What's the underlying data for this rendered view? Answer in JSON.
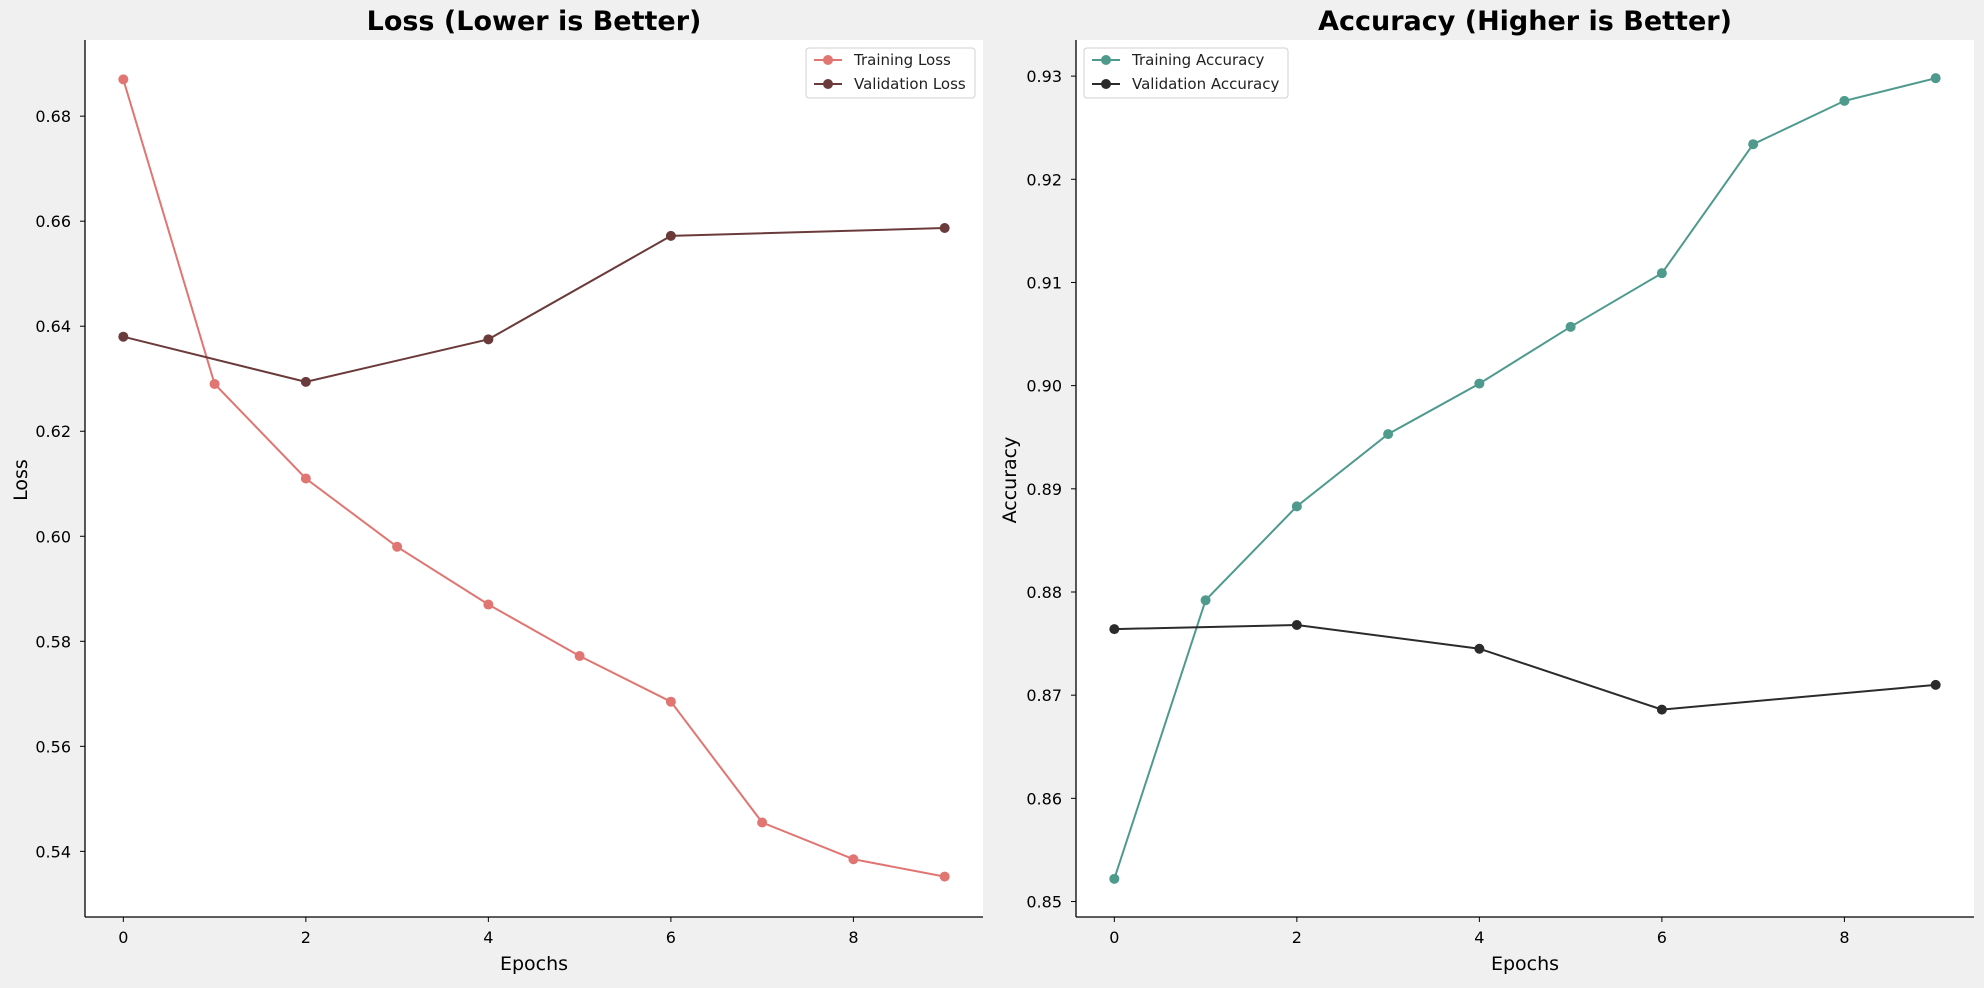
{
  "figure": {
    "background": "#f0f0f0",
    "plot_background": "#ffffff"
  },
  "chart_data": [
    {
      "type": "line",
      "title": "Loss (Lower is Better)",
      "xlabel": "Epochs",
      "ylabel": "Loss",
      "x": [
        0,
        1,
        2,
        3,
        4,
        5,
        6,
        7,
        8,
        9
      ],
      "xlim": [
        -0.42,
        9.42
      ],
      "ylim": [
        0.5275,
        0.6945
      ],
      "xticks": [
        0,
        2,
        4,
        6,
        8
      ],
      "yticks": [
        0.54,
        0.56,
        0.58,
        0.6,
        0.62,
        0.64,
        0.66,
        0.68
      ],
      "ytick_labels": [
        "0.54",
        "0.56",
        "0.58",
        "0.60",
        "0.62",
        "0.64",
        "0.66",
        "0.68"
      ],
      "grid": false,
      "legend": "top-right",
      "series": [
        {
          "name": "Training Loss",
          "color": "#e07572",
          "marker": "circle",
          "x": [
            0,
            1,
            2,
            3,
            4,
            5,
            6,
            7,
            8,
            9
          ],
          "values": [
            0.687,
            0.629,
            0.611,
            0.598,
            0.587,
            0.5772,
            0.5685,
            0.5455,
            0.5385,
            0.5352
          ]
        },
        {
          "name": "Validation Loss",
          "color": "#6b3b3b",
          "marker": "circle",
          "x": [
            0,
            2,
            4,
            6,
            9
          ],
          "values": [
            0.638,
            0.6294,
            0.6375,
            0.6572,
            0.6587
          ]
        }
      ]
    },
    {
      "type": "line",
      "title": "Accuracy (Higher is Better)",
      "xlabel": "Epochs",
      "ylabel": "Accuracy",
      "x": [
        0,
        1,
        2,
        3,
        4,
        5,
        6,
        7,
        8,
        9
      ],
      "xlim": [
        -0.42,
        9.42
      ],
      "ylim": [
        0.8485,
        0.9335
      ],
      "xticks": [
        0,
        2,
        4,
        6,
        8
      ],
      "yticks": [
        0.85,
        0.86,
        0.87,
        0.88,
        0.89,
        0.9,
        0.91,
        0.92,
        0.93
      ],
      "ytick_labels": [
        "0.85",
        "0.86",
        "0.87",
        "0.88",
        "0.89",
        "0.90",
        "0.91",
        "0.92",
        "0.93"
      ],
      "grid": false,
      "legend": "top-left",
      "series": [
        {
          "name": "Training Accuracy",
          "color": "#4e9a8d",
          "marker": "circle",
          "x": [
            0,
            1,
            2,
            3,
            4,
            5,
            6,
            7,
            8,
            9
          ],
          "values": [
            0.8522,
            0.8792,
            0.8883,
            0.8953,
            0.9002,
            0.9057,
            0.9109,
            0.9234,
            0.9276,
            0.9298
          ]
        },
        {
          "name": "Validation Accuracy",
          "color": "#2b2b2b",
          "marker": "circle",
          "x": [
            0,
            2,
            4,
            6,
            9
          ],
          "values": [
            0.8764,
            0.8768,
            0.8745,
            0.8686,
            0.871
          ]
        }
      ]
    }
  ]
}
